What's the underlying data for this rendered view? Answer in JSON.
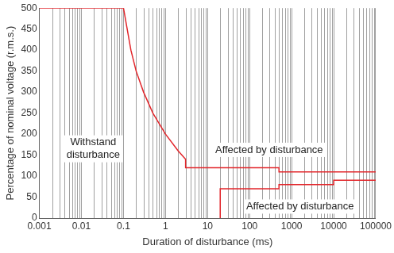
{
  "chart_data": {
    "type": "line",
    "x_label": "Duration of disturbance (ms)",
    "y_label": "Percentage of nominal voltage (r.m.s.)",
    "series": [
      {
        "color": "#e2262b",
        "line_style": "solid",
        "x": [
          0.001,
          0.1,
          0.15,
          0.2,
          0.3,
          0.5,
          1,
          2,
          3,
          3,
          500,
          500,
          100000
        ],
        "values": [
          500,
          500,
          400,
          350,
          300,
          250,
          200,
          160,
          140,
          120,
          120,
          110,
          110
        ]
      },
      {
        "color": "#e2262b",
        "line_style": "solid",
        "x": [
          20,
          20,
          500,
          500,
          10000,
          10000,
          100000
        ],
        "values": [
          0,
          70,
          70,
          80,
          80,
          90,
          90
        ]
      }
    ],
    "log": "x",
    "xlim": [
      0.001,
      100000
    ],
    "xticks": [
      0.001,
      0.01,
      0.1,
      1,
      10,
      100,
      1000,
      10000,
      100000
    ],
    "ylim": [
      0,
      500
    ],
    "yticks": [
      0,
      50,
      100,
      150,
      200,
      250,
      300,
      350,
      400,
      450,
      500
    ],
    "grid": "x",
    "annotations": [
      "Withstand disturbance",
      "Affected by disturbance",
      "Affected by disturbance"
    ]
  }
}
